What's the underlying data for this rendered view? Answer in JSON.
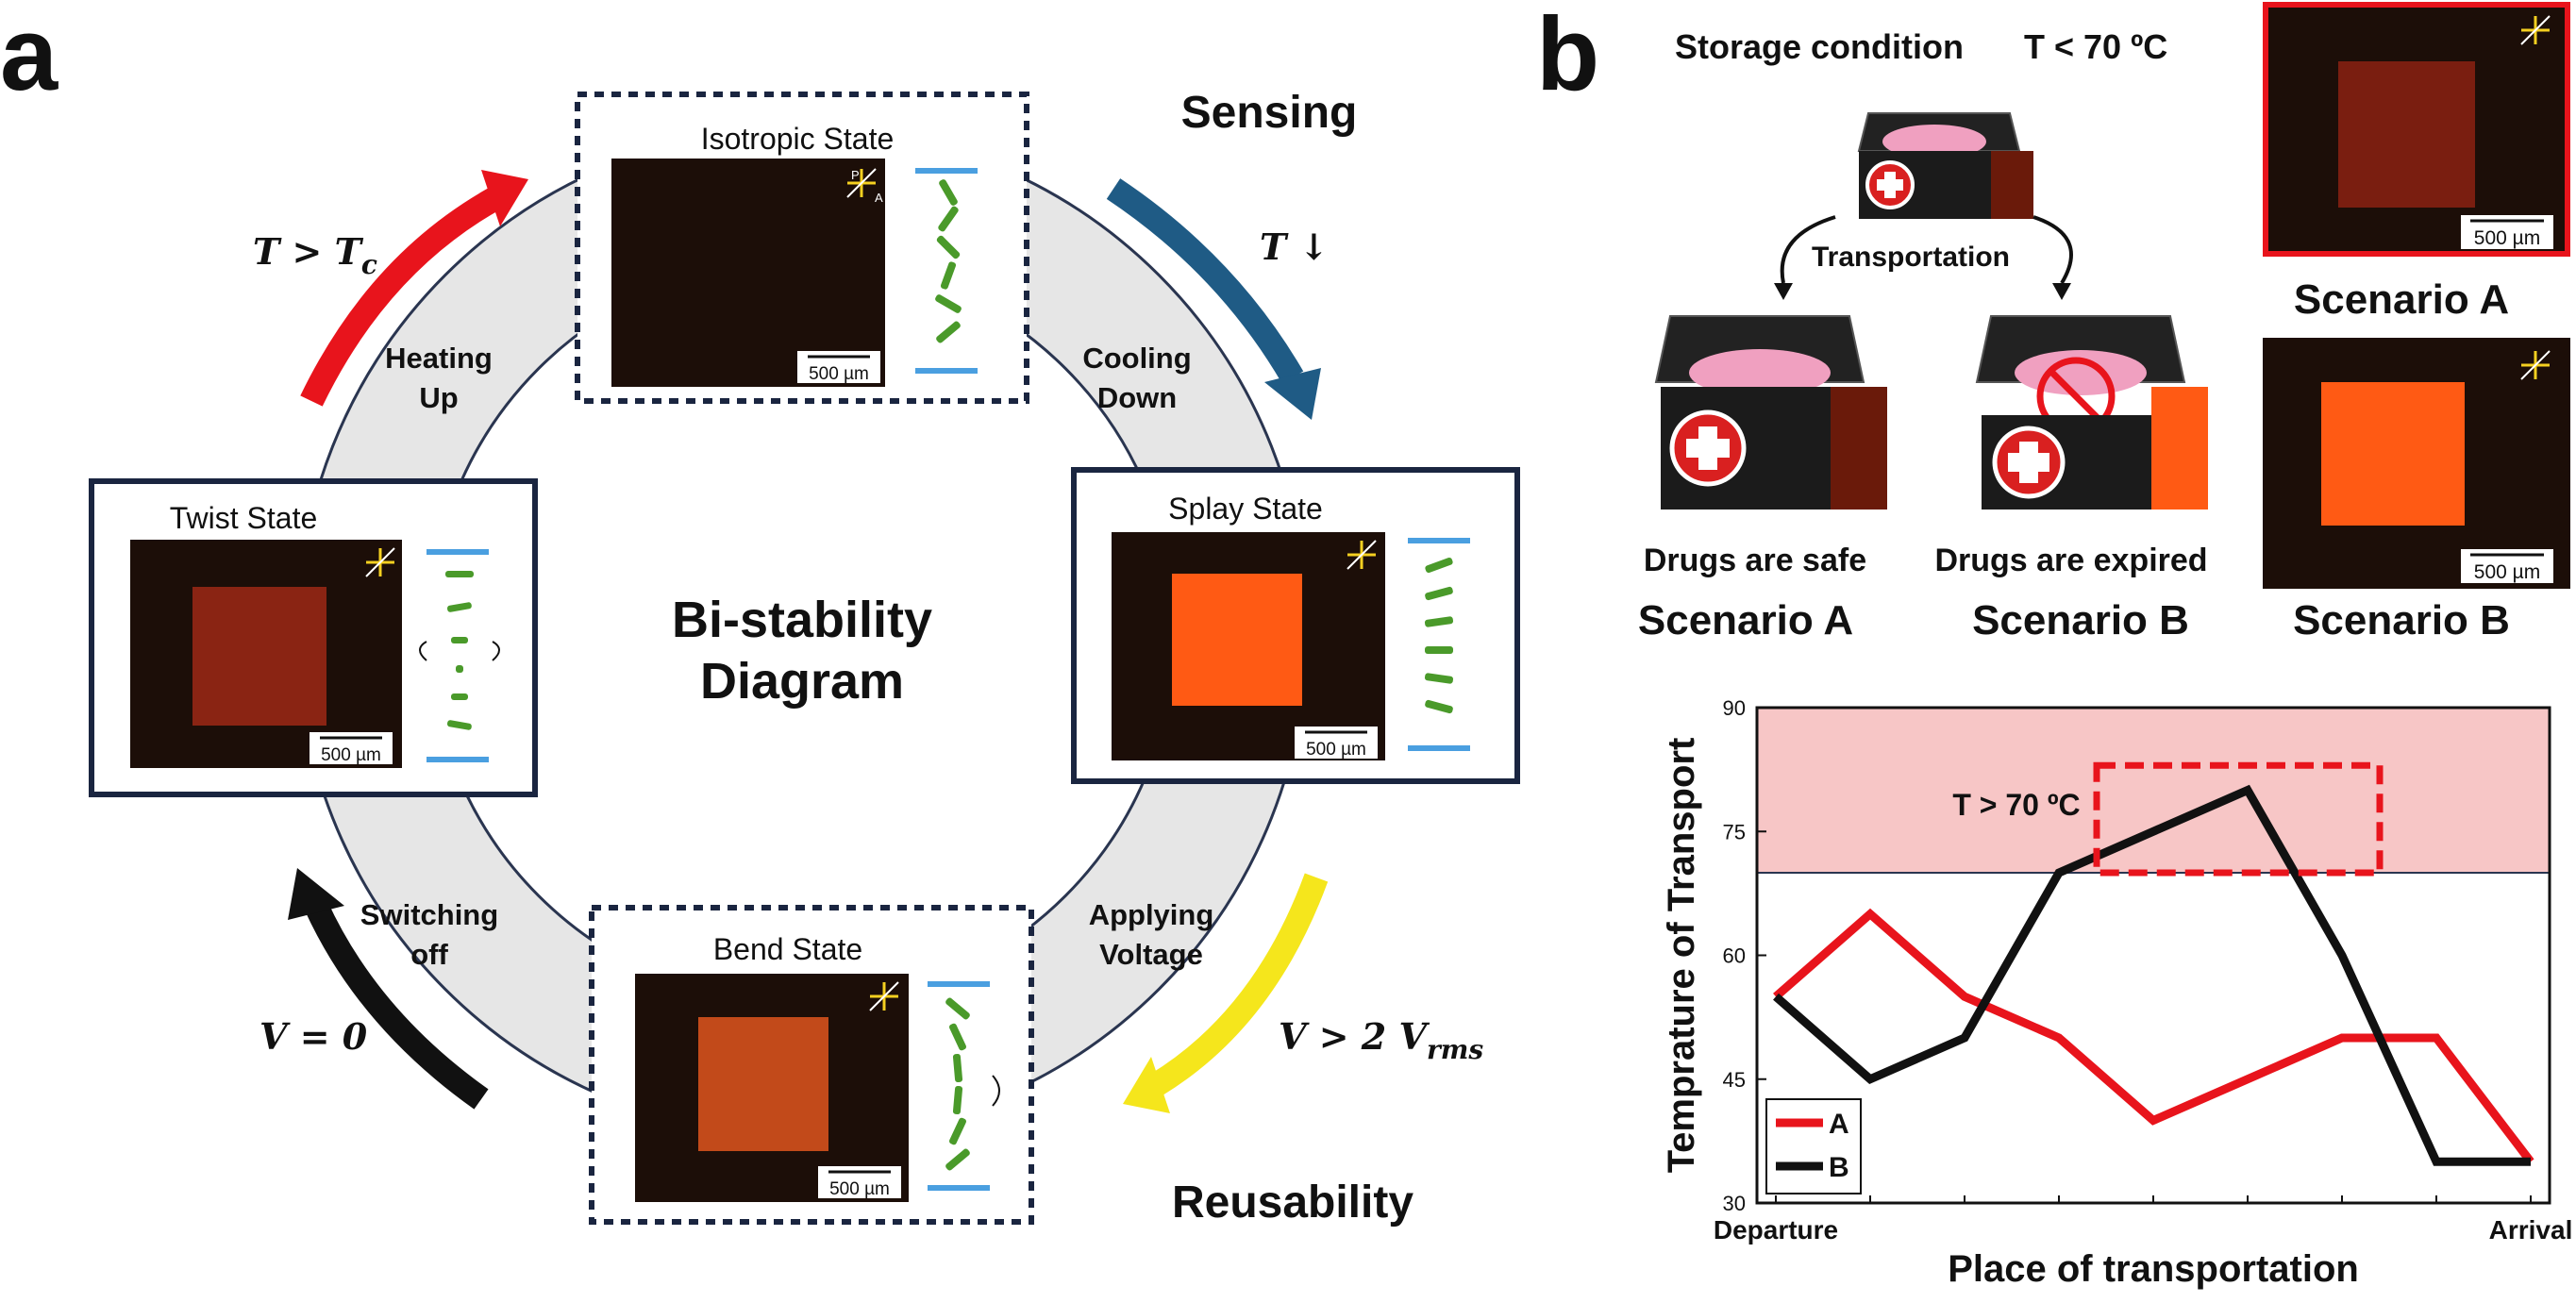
{
  "panel_a": {
    "letter": "a",
    "center_title_1": "Bi-stability",
    "center_title_2": "Diagram",
    "sensing": "Sensing",
    "reusability": "Reusability",
    "states": {
      "isotropic": "Isotropic State",
      "splay": "Splay State",
      "bend": "Bend State",
      "twist": "Twist State"
    },
    "transitions": {
      "heating_1": "Heating",
      "heating_2": "Up",
      "cooling_1": "Cooling",
      "cooling_2": "Down",
      "applying_1": "Applying",
      "applying_2": "Voltage",
      "switching_1": "Switching",
      "switching_2": "off"
    },
    "conditions": {
      "heat": "T > T",
      "heat_sub": "c",
      "cool": "T ↓",
      "voltage": "V > 2 V",
      "voltage_sub": "rms",
      "zero": "V = 0"
    },
    "scale_bar": "500 µm",
    "polarizer_p": "P",
    "polarizer_a": "A",
    "colors": {
      "arrow_heat": "#e8141c",
      "arrow_cool": "#1f5b85",
      "arrow_voltage": "#f5e61c",
      "arrow_off": "#111111",
      "state_dark": "#1c0e08",
      "state_twist": "#8a2413",
      "state_splay": "#ff5a14",
      "state_bend": "#c24a1a",
      "molecule": "#4a9a2a",
      "electrode": "#4a9fe0"
    }
  },
  "panel_b": {
    "letter": "b",
    "storage_condition": "Storage condition",
    "storage_value": "T < 70 ºC",
    "transportation": "Transportation",
    "safe": "Drugs are safe",
    "expired": "Drugs are expired",
    "scenario_a": "Scenario A",
    "scenario_b": "Scenario B",
    "scale_bar": "500 µm"
  },
  "chart_data": {
    "type": "line",
    "xlabel": "Place of transportation",
    "ylabel": "Temprature of Transport",
    "x_tick_labels": [
      "Departure",
      "Arrival"
    ],
    "x": [
      0,
      1,
      2,
      3,
      4,
      5,
      6,
      7,
      8
    ],
    "ylim": [
      30,
      90
    ],
    "yticks": [
      30,
      45,
      60,
      75,
      90
    ],
    "threshold": 70,
    "threshold_label": "T > 70 ºC",
    "series": [
      {
        "name": "A",
        "color": "#e8141c",
        "values": [
          55,
          65,
          55,
          50,
          40,
          45,
          50,
          50,
          35
        ]
      },
      {
        "name": "B",
        "color": "#111111",
        "values": [
          55,
          45,
          50,
          70,
          75,
          80,
          60,
          35,
          35
        ]
      }
    ],
    "legend": "bottom-left",
    "grid": false
  }
}
